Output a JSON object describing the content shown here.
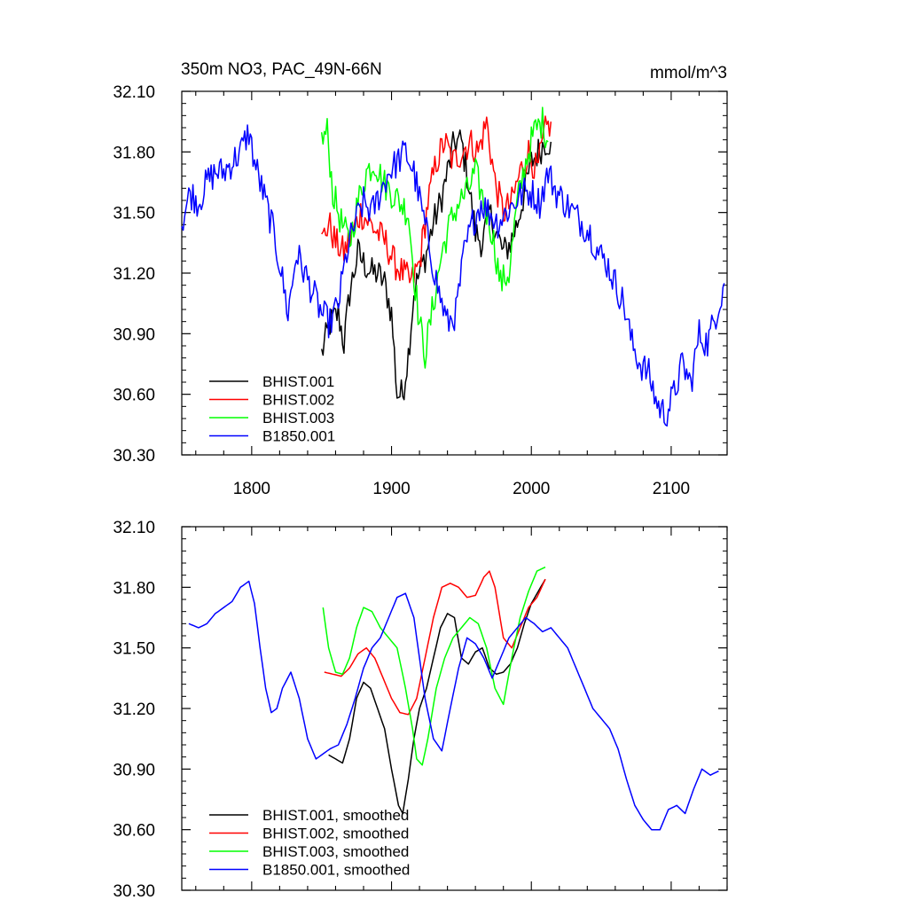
{
  "page": {
    "title_left": "350m NO3, PAC_49N-66N",
    "title_right": "mmol/m^3"
  },
  "colors": {
    "BHIST.001": "#000000",
    "BHIST.002": "#ff0000",
    "BHIST.003": "#00ff00",
    "B1850.001": "#0000ff"
  },
  "chart_data": [
    {
      "type": "line",
      "panel": "top",
      "title": "350m NO3, PAC_49N-66N",
      "units": "mmol/m^3",
      "xlim": [
        1750,
        2140
      ],
      "ylim": [
        30.3,
        32.1
      ],
      "x_ticks": [
        1800,
        1900,
        2000,
        2100
      ],
      "x_tick_labels": [
        "1800",
        "1900",
        "2000",
        "2100"
      ],
      "y_ticks": [
        30.3,
        30.6,
        30.9,
        31.2,
        31.5,
        31.8,
        32.1
      ],
      "y_tick_labels": [
        "30.30",
        "30.60",
        "30.90",
        "31.20",
        "31.50",
        "31.80",
        "32.10"
      ],
      "legend": [
        "BHIST.001",
        "BHIST.002",
        "BHIST.003",
        "B1850.001"
      ],
      "legend_position": "bottom-left",
      "noisy": true,
      "series": [
        {
          "name": "BHIST.001",
          "color": "#000000",
          "x": [
            1850,
            1856,
            1862,
            1866,
            1870,
            1876,
            1880,
            1886,
            1890,
            1895,
            1900,
            1904,
            1908,
            1912,
            1916,
            1920,
            1925,
            1930,
            1935,
            1940,
            1945,
            1950,
            1955,
            1960,
            1965,
            1970,
            1975,
            1980,
            1985,
            1990,
            1995,
            2000,
            2005,
            2010,
            2014
          ],
          "y": [
            30.8,
            30.95,
            31.0,
            30.85,
            31.1,
            31.3,
            31.25,
            31.2,
            31.2,
            31.15,
            31.0,
            30.6,
            30.6,
            30.8,
            31.1,
            31.2,
            31.3,
            31.45,
            31.55,
            31.7,
            31.85,
            31.85,
            31.65,
            31.4,
            31.35,
            31.5,
            31.4,
            31.3,
            31.35,
            31.45,
            31.6,
            31.75,
            31.8,
            31.85,
            31.85
          ]
        },
        {
          "name": "BHIST.002",
          "color": "#ff0000",
          "x": [
            1850,
            1855,
            1860,
            1866,
            1872,
            1878,
            1884,
            1890,
            1896,
            1902,
            1908,
            1914,
            1920,
            1926,
            1932,
            1938,
            1944,
            1950,
            1956,
            1962,
            1968,
            1974,
            1980,
            1986,
            1992,
            1998,
            2004,
            2010,
            2014
          ],
          "y": [
            31.35,
            31.45,
            31.35,
            31.3,
            31.4,
            31.5,
            31.45,
            31.4,
            31.35,
            31.25,
            31.2,
            31.15,
            31.25,
            31.55,
            31.75,
            31.85,
            31.75,
            31.8,
            31.85,
            31.8,
            31.95,
            31.65,
            31.5,
            31.55,
            31.7,
            31.8,
            31.7,
            31.9,
            31.95
          ]
        },
        {
          "name": "BHIST.003",
          "color": "#00ff00",
          "x": [
            1850,
            1854,
            1858,
            1864,
            1870,
            1876,
            1882,
            1888,
            1894,
            1900,
            1906,
            1912,
            1916,
            1920,
            1924,
            1930,
            1936,
            1942,
            1948,
            1954,
            1960,
            1966,
            1972,
            1978,
            1984,
            1990,
            1996,
            2002,
            2008,
            2012
          ],
          "y": [
            31.85,
            31.9,
            31.6,
            31.45,
            31.35,
            31.55,
            31.7,
            31.75,
            31.65,
            31.6,
            31.55,
            31.5,
            31.2,
            30.95,
            30.8,
            31.05,
            31.3,
            31.45,
            31.55,
            31.6,
            31.7,
            31.55,
            31.4,
            31.15,
            31.2,
            31.55,
            31.75,
            31.9,
            31.95,
            31.85
          ]
        },
        {
          "name": "B1850.001",
          "color": "#0000ff",
          "x": [
            1750,
            1756,
            1762,
            1768,
            1774,
            1780,
            1786,
            1792,
            1798,
            1802,
            1808,
            1814,
            1820,
            1826,
            1832,
            1838,
            1844,
            1850,
            1856,
            1862,
            1868,
            1874,
            1880,
            1886,
            1892,
            1898,
            1904,
            1910,
            1916,
            1922,
            1928,
            1934,
            1940,
            1946,
            1952,
            1958,
            1964,
            1970,
            1976,
            1982,
            1988,
            1994,
            2000,
            2006,
            2012,
            2018,
            2024,
            2030,
            2036,
            2042,
            2048,
            2054,
            2060,
            2066,
            2072,
            2078,
            2084,
            2090,
            2096,
            2102,
            2108,
            2114,
            2120,
            2126,
            2132,
            2138
          ],
          "y": [
            31.45,
            31.6,
            31.55,
            31.65,
            31.7,
            31.7,
            31.75,
            31.8,
            31.9,
            31.75,
            31.6,
            31.45,
            31.25,
            31.0,
            31.3,
            31.2,
            31.1,
            31.0,
            30.95,
            31.05,
            31.3,
            31.45,
            31.55,
            31.5,
            31.6,
            31.7,
            31.75,
            31.8,
            31.7,
            31.5,
            31.3,
            31.1,
            30.95,
            31.0,
            31.3,
            31.45,
            31.55,
            31.5,
            31.45,
            31.5,
            31.55,
            31.6,
            31.6,
            31.55,
            31.7,
            31.6,
            31.55,
            31.5,
            31.45,
            31.4,
            31.3,
            31.25,
            31.15,
            31.05,
            30.85,
            30.75,
            30.7,
            30.55,
            30.5,
            30.6,
            30.75,
            30.65,
            30.9,
            30.85,
            31.0,
            31.15
          ]
        }
      ]
    },
    {
      "type": "line",
      "panel": "bottom",
      "xlim": [
        1750,
        2140
      ],
      "ylim": [
        30.3,
        32.1
      ],
      "y_ticks": [
        30.3,
        30.6,
        30.9,
        31.2,
        31.5,
        31.8,
        32.1
      ],
      "y_tick_labels": [
        "30.30",
        "30.60",
        "30.90",
        "31.20",
        "31.50",
        "31.80",
        "32.10"
      ],
      "legend": [
        "BHIST.001, smoothed",
        "BHIST.002, smoothed",
        "BHIST.003, smoothed",
        "B1850.001, smoothed"
      ],
      "legend_position": "bottom-left",
      "noisy": false,
      "series": [
        {
          "name": "BHIST.001, smoothed",
          "color": "#000000",
          "x": [
            1855,
            1860,
            1865,
            1870,
            1875,
            1880,
            1885,
            1890,
            1895,
            1900,
            1905,
            1908,
            1912,
            1916,
            1920,
            1925,
            1930,
            1935,
            1940,
            1945,
            1950,
            1955,
            1960,
            1965,
            1970,
            1975,
            1980,
            1985,
            1990,
            1995,
            2000,
            2005,
            2010
          ],
          "y": [
            30.97,
            30.95,
            30.93,
            31.05,
            31.25,
            31.33,
            31.3,
            31.2,
            31.1,
            30.9,
            30.72,
            30.68,
            30.85,
            31.05,
            31.2,
            31.3,
            31.45,
            31.6,
            31.67,
            31.65,
            31.45,
            31.42,
            31.48,
            31.5,
            31.4,
            31.37,
            31.38,
            31.42,
            31.5,
            31.62,
            31.72,
            31.78,
            31.84
          ]
        },
        {
          "name": "BHIST.002, smoothed",
          "color": "#ff0000",
          "x": [
            1852,
            1858,
            1864,
            1870,
            1876,
            1882,
            1888,
            1894,
            1900,
            1906,
            1912,
            1918,
            1924,
            1930,
            1936,
            1942,
            1948,
            1954,
            1960,
            1966,
            1970,
            1974,
            1980,
            1986,
            1992,
            1998,
            2004,
            2010
          ],
          "y": [
            31.38,
            31.37,
            31.36,
            31.4,
            31.47,
            31.5,
            31.45,
            31.35,
            31.25,
            31.18,
            31.17,
            31.25,
            31.45,
            31.65,
            31.8,
            31.82,
            31.8,
            31.75,
            31.76,
            31.85,
            31.88,
            31.8,
            31.55,
            31.5,
            31.6,
            31.7,
            31.75,
            31.84
          ]
        },
        {
          "name": "BHIST.003, smoothed",
          "color": "#00ff00",
          "x": [
            1851,
            1855,
            1860,
            1865,
            1870,
            1875,
            1880,
            1886,
            1892,
            1898,
            1904,
            1910,
            1915,
            1918,
            1922,
            1926,
            1932,
            1938,
            1944,
            1950,
            1956,
            1962,
            1968,
            1974,
            1980,
            1986,
            1992,
            1998,
            2004,
            2010
          ],
          "y": [
            31.7,
            31.5,
            31.38,
            31.37,
            31.45,
            31.6,
            31.7,
            31.68,
            31.6,
            31.55,
            31.5,
            31.3,
            31.1,
            30.95,
            30.92,
            31.05,
            31.3,
            31.45,
            31.55,
            31.6,
            31.65,
            31.62,
            31.5,
            31.3,
            31.22,
            31.45,
            31.65,
            31.78,
            31.88,
            31.9
          ]
        },
        {
          "name": "B1850.001, smoothed",
          "color": "#0000ff",
          "x": [
            1755,
            1762,
            1768,
            1774,
            1780,
            1786,
            1792,
            1798,
            1802,
            1806,
            1810,
            1814,
            1818,
            1822,
            1828,
            1834,
            1840,
            1846,
            1850,
            1856,
            1862,
            1868,
            1874,
            1880,
            1886,
            1892,
            1898,
            1904,
            1910,
            1916,
            1920,
            1924,
            1930,
            1936,
            1942,
            1948,
            1954,
            1960,
            1966,
            1972,
            1978,
            1984,
            1990,
            1996,
            2002,
            2008,
            2014,
            2020,
            2026,
            2032,
            2038,
            2044,
            2050,
            2056,
            2062,
            2068,
            2074,
            2080,
            2086,
            2092,
            2098,
            2104,
            2110,
            2116,
            2122,
            2128,
            2134
          ],
          "y": [
            31.62,
            31.6,
            31.62,
            31.67,
            31.7,
            31.73,
            31.8,
            31.83,
            31.72,
            31.5,
            31.3,
            31.18,
            31.2,
            31.3,
            31.38,
            31.25,
            31.05,
            30.95,
            30.97,
            31.0,
            31.02,
            31.12,
            31.25,
            31.4,
            31.5,
            31.55,
            31.65,
            31.75,
            31.77,
            31.65,
            31.45,
            31.25,
            31.05,
            30.99,
            31.2,
            31.4,
            31.55,
            31.52,
            31.45,
            31.35,
            31.45,
            31.55,
            31.6,
            31.65,
            31.62,
            31.58,
            31.6,
            31.55,
            31.5,
            31.4,
            31.3,
            31.2,
            31.15,
            31.1,
            31.0,
            30.85,
            30.72,
            30.65,
            30.6,
            30.6,
            30.7,
            30.72,
            30.68,
            30.8,
            30.9,
            30.87,
            30.89
          ]
        }
      ]
    }
  ]
}
